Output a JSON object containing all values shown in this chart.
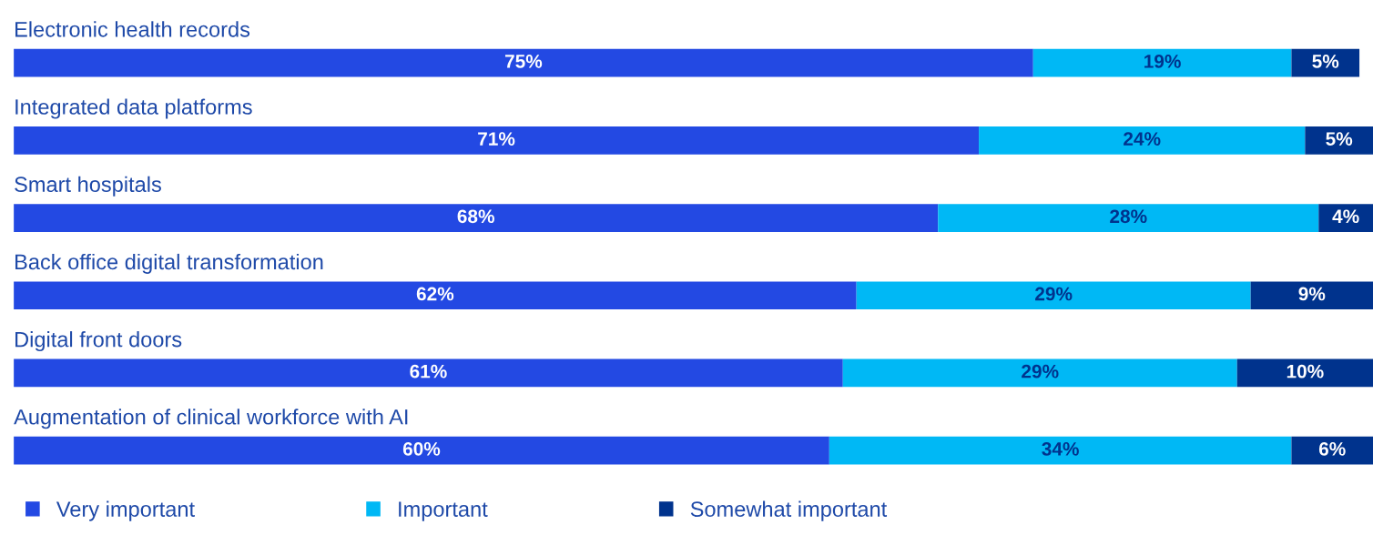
{
  "chart_data": {
    "type": "bar",
    "orientation": "horizontal",
    "stacked": true,
    "legend": "bottom",
    "categories": [
      "Electronic health records",
      "Integrated data platforms",
      "Smart hospitals",
      "Back office digital transformation",
      "Digital front doors",
      "Augmentation of clinical workforce with AI"
    ],
    "series": [
      {
        "name": "Very important",
        "color": "#2349e3",
        "values": [
          75,
          71,
          68,
          62,
          61,
          60
        ],
        "value_labels": [
          "75%",
          "71%",
          "68%",
          "62%",
          "61%",
          "60%"
        ]
      },
      {
        "name": "Important",
        "color": "#00b8f5",
        "values": [
          19,
          24,
          28,
          29,
          29,
          34
        ],
        "value_labels": [
          "19%",
          "24%",
          "28%",
          "29%",
          "29%",
          "34%"
        ]
      },
      {
        "name": "Somewhat important",
        "color": "#00338d",
        "values": [
          5,
          5,
          4,
          9,
          10,
          6
        ],
        "value_labels": [
          "5%",
          "5%",
          "4%",
          "9%",
          "10%",
          "6%"
        ]
      }
    ]
  }
}
